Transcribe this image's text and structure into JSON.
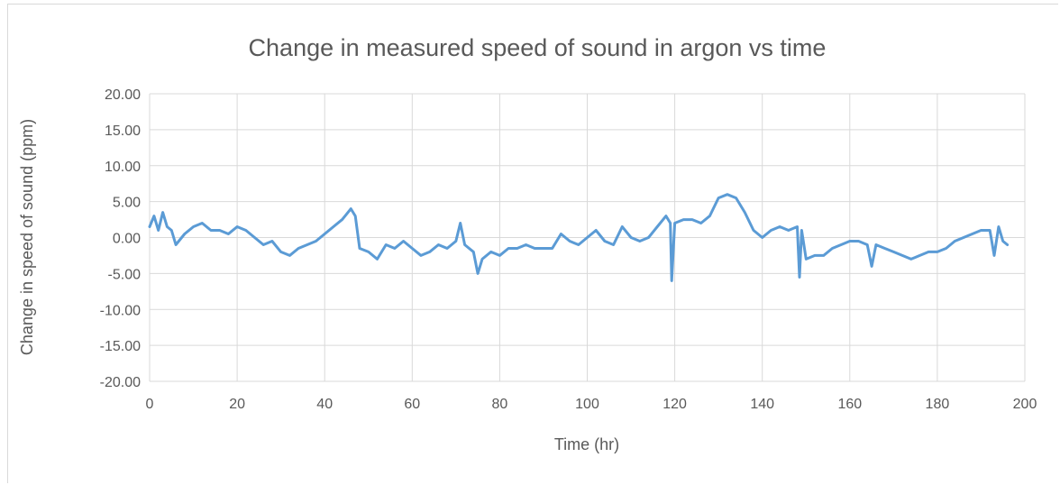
{
  "chart_data": {
    "type": "line",
    "title": "Change in measured speed of sound in argon vs time",
    "xlabel": "Time (hr)",
    "ylabel": "Change in speed of sound (ppm)",
    "xlim": [
      0,
      200
    ],
    "ylim": [
      -20,
      20
    ],
    "x_ticks": [
      0,
      20,
      40,
      60,
      80,
      100,
      120,
      140,
      160,
      180,
      200
    ],
    "y_ticks": [
      20,
      15,
      10,
      5,
      0,
      -5,
      -10,
      -15,
      -20
    ],
    "x_tick_labels": [
      "0",
      "20",
      "40",
      "60",
      "80",
      "100",
      "120",
      "140",
      "160",
      "180",
      "200"
    ],
    "y_tick_labels": [
      "20.00",
      "15.00",
      "10.00",
      "5.00",
      "0.00",
      "-5.00",
      "-10.00",
      "-15.00",
      "-20.00"
    ],
    "grid": true,
    "legend": "none",
    "line_color": "#5b9bd5",
    "series": [
      {
        "x": [
          0,
          1,
          2,
          3,
          4,
          5,
          6,
          8,
          10,
          12,
          14,
          16,
          18,
          20,
          22,
          24,
          26,
          28,
          30,
          32,
          34,
          36,
          38,
          40,
          42,
          44,
          46,
          47,
          48,
          50,
          52,
          54,
          56,
          58,
          60,
          62,
          64,
          66,
          68,
          70,
          71,
          72,
          74,
          75,
          76,
          78,
          80,
          82,
          84,
          86,
          88,
          90,
          92,
          94,
          96,
          98,
          100,
          102,
          104,
          106,
          108,
          110,
          112,
          114,
          116,
          118,
          119,
          119.3,
          120,
          122,
          124,
          126,
          128,
          130,
          132,
          134,
          136,
          138,
          140,
          142,
          144,
          146,
          148,
          148.5,
          149,
          150,
          152,
          154,
          156,
          158,
          160,
          162,
          164,
          165,
          166,
          168,
          170,
          172,
          174,
          176,
          178,
          180,
          182,
          184,
          186,
          188,
          190,
          192,
          193,
          194,
          195,
          196
        ],
        "y": [
          1.5,
          3.0,
          1.0,
          3.5,
          1.5,
          1.0,
          -1.0,
          0.5,
          1.5,
          2.0,
          1.0,
          1.0,
          0.5,
          1.5,
          1.0,
          0.0,
          -1.0,
          -0.5,
          -2.0,
          -2.5,
          -1.5,
          -1.0,
          -0.5,
          0.5,
          1.5,
          2.5,
          4.0,
          3.0,
          -1.5,
          -2.0,
          -3.0,
          -1.0,
          -1.5,
          -0.5,
          -1.5,
          -2.5,
          -2.0,
          -1.0,
          -1.5,
          -0.5,
          2.0,
          -1.0,
          -2.0,
          -5.0,
          -3.0,
          -2.0,
          -2.5,
          -1.5,
          -1.5,
          -1.0,
          -1.5,
          -1.5,
          -1.5,
          0.5,
          -0.5,
          -1.0,
          0.0,
          1.0,
          -0.5,
          -1.0,
          1.5,
          0.0,
          -0.5,
          0.0,
          1.5,
          3.0,
          2.0,
          -6.0,
          2.0,
          2.5,
          2.5,
          2.0,
          3.0,
          5.5,
          6.0,
          5.5,
          3.5,
          1.0,
          0.0,
          1.0,
          1.5,
          1.0,
          1.5,
          -5.5,
          1.0,
          -3.0,
          -2.5,
          -2.5,
          -1.5,
          -1.0,
          -0.5,
          -0.5,
          -1.0,
          -4.0,
          -1.0,
          -1.5,
          -2.0,
          -2.5,
          -3.0,
          -2.5,
          -2.0,
          -2.0,
          -1.5,
          -0.5,
          0.0,
          0.5,
          1.0,
          1.0,
          -2.5,
          1.5,
          -0.5,
          -1.0
        ]
      }
    ]
  }
}
